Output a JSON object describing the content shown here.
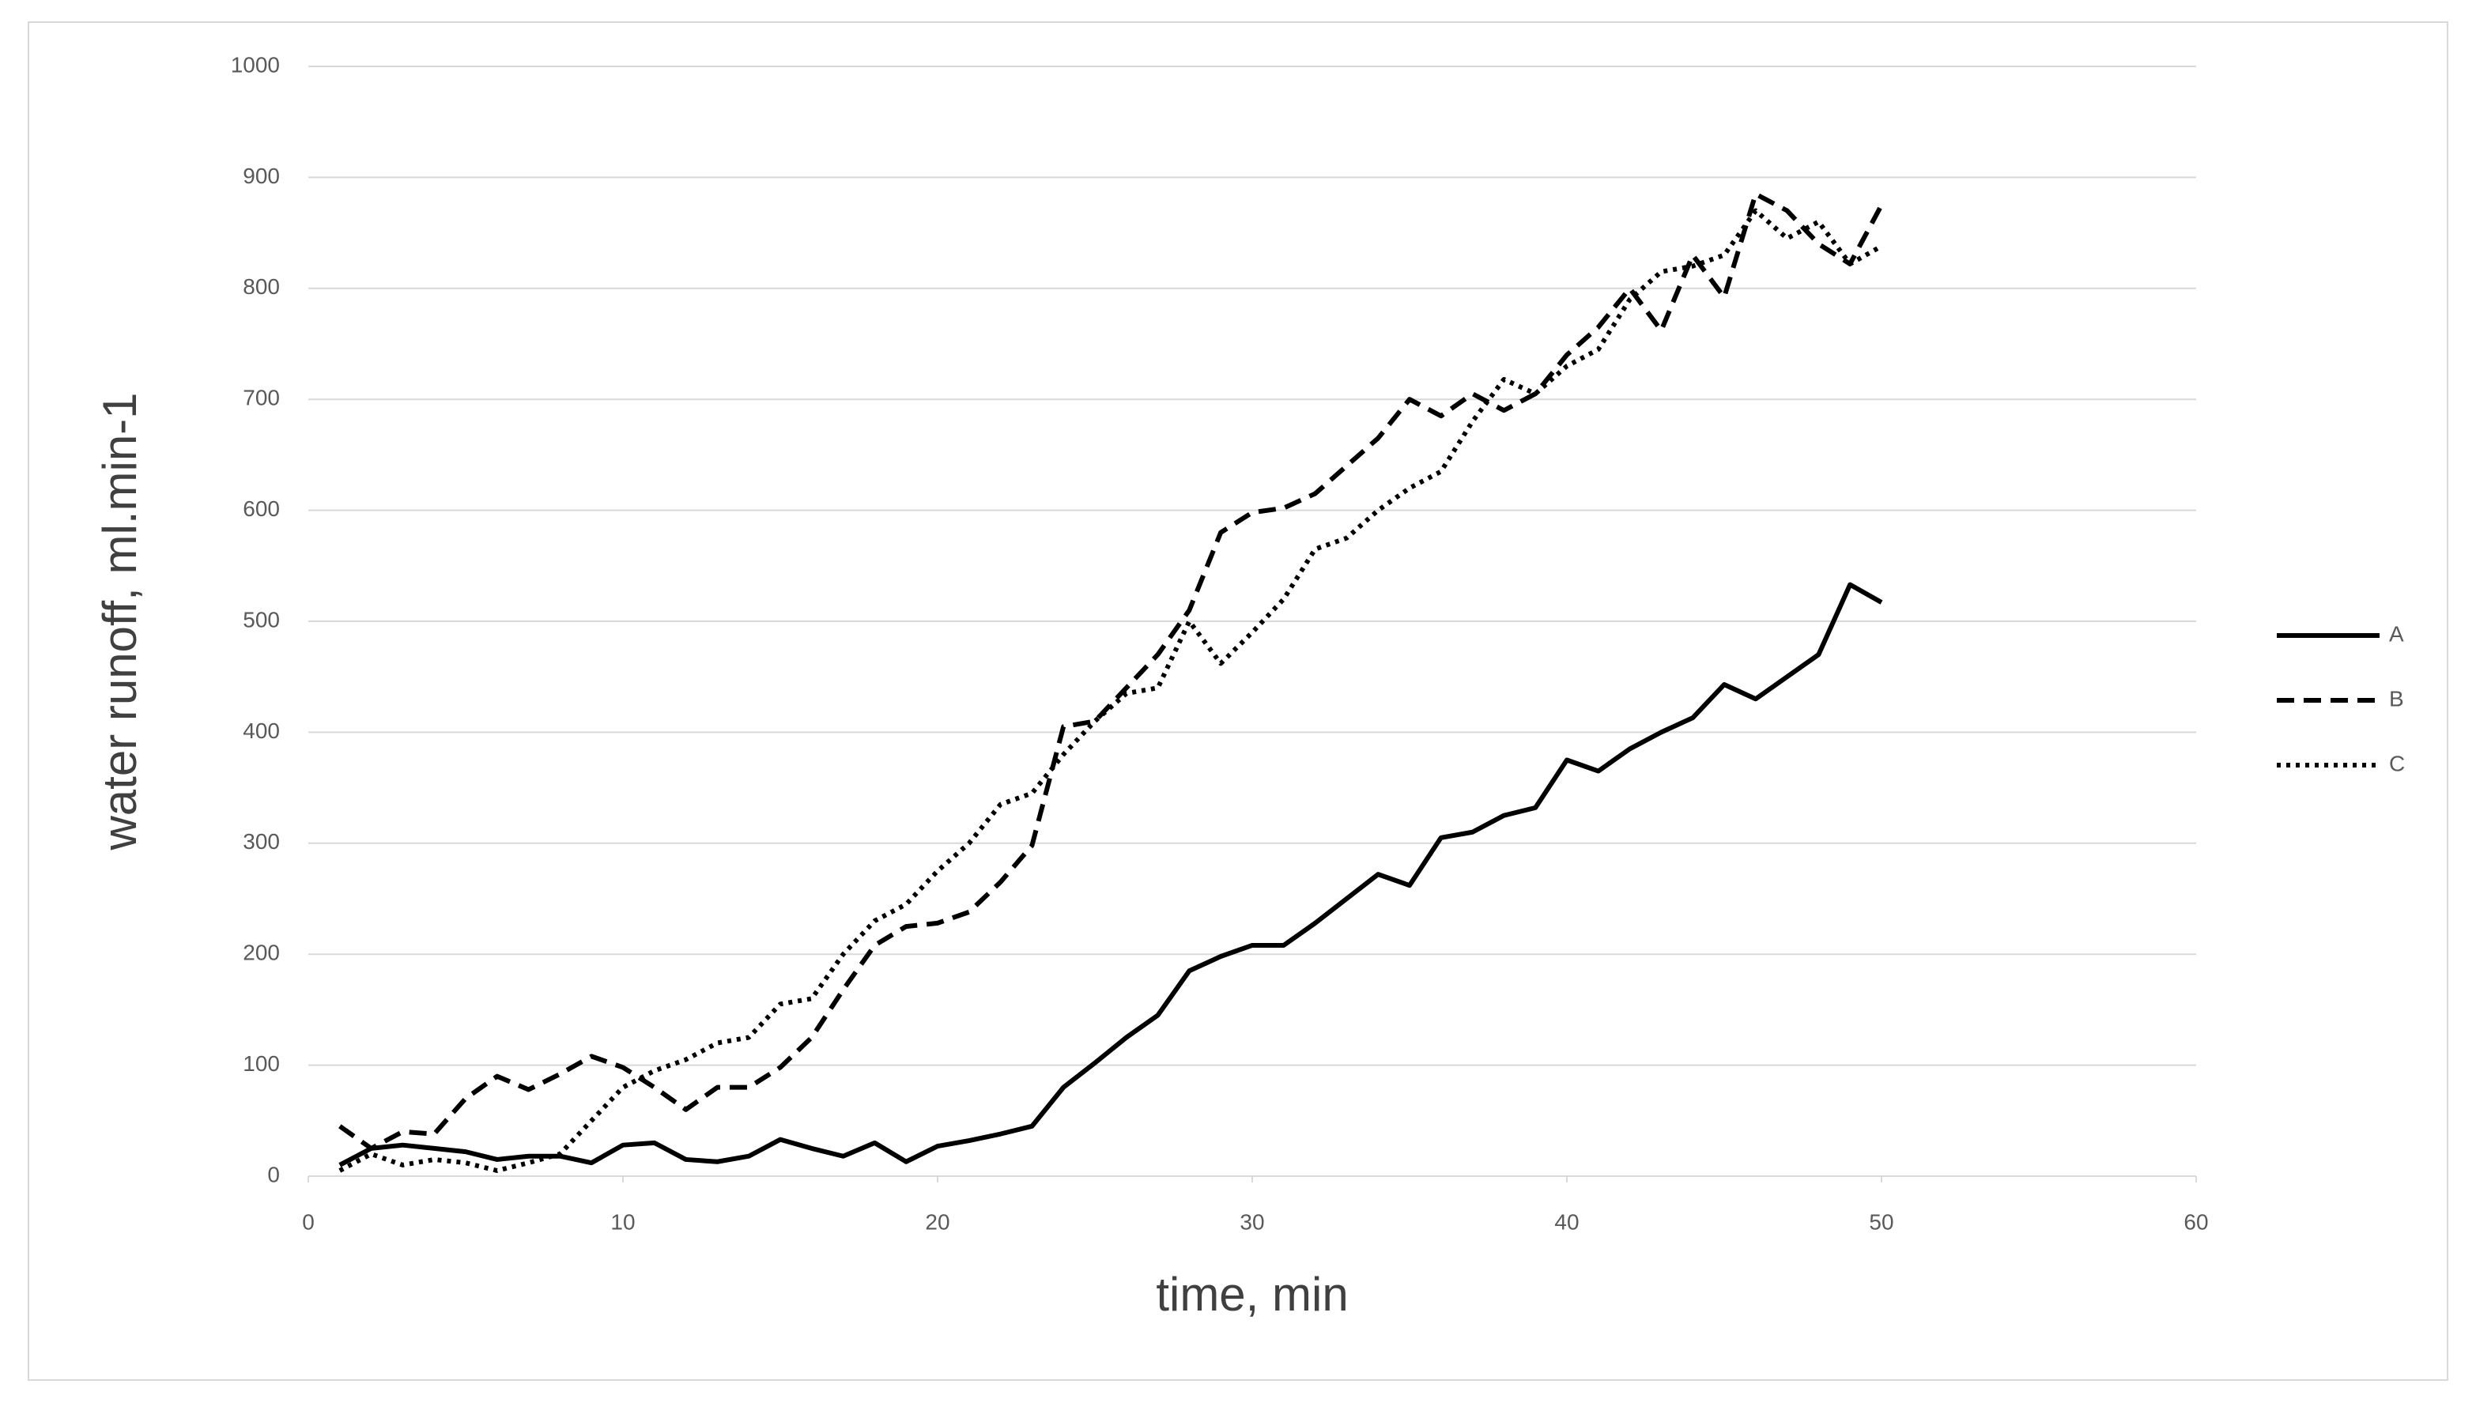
{
  "chart_data": {
    "type": "line",
    "x_label": "time, min",
    "y_label": "water runoff, ml.min-1",
    "x": [
      1,
      2,
      3,
      4,
      5,
      6,
      7,
      8,
      9,
      10,
      11,
      12,
      13,
      14,
      15,
      16,
      17,
      18,
      19,
      20,
      21,
      22,
      23,
      24,
      25,
      26,
      27,
      28,
      29,
      30,
      31,
      32,
      33,
      34,
      35,
      36,
      37,
      38,
      39,
      40,
      41,
      42,
      43,
      44,
      45,
      46,
      47,
      48,
      49,
      50
    ],
    "series": [
      {
        "name": "A",
        "color": "#000000",
        "dash": "solid",
        "values": [
          10,
          25,
          28,
          25,
          22,
          15,
          18,
          18,
          12,
          28,
          30,
          15,
          13,
          18,
          33,
          25,
          18,
          30,
          13,
          27,
          32,
          38,
          45,
          80,
          102,
          125,
          145,
          185,
          198,
          208,
          208,
          228,
          250,
          272,
          262,
          305,
          310,
          325,
          332,
          375,
          365,
          385,
          400,
          413,
          443,
          430,
          450,
          470,
          533,
          517
        ]
      },
      {
        "name": "B",
        "color": "#000000",
        "dash": "dashed",
        "values": [
          45,
          25,
          40,
          38,
          70,
          90,
          78,
          92,
          108,
          98,
          80,
          60,
          80,
          80,
          98,
          125,
          168,
          208,
          225,
          228,
          238,
          265,
          298,
          405,
          410,
          440,
          470,
          510,
          580,
          598,
          602,
          615,
          640,
          665,
          700,
          685,
          705,
          690,
          705,
          740,
          765,
          800,
          762,
          830,
          792,
          885,
          870,
          840,
          822,
          875
        ]
      },
      {
        "name": "C",
        "color": "#000000",
        "dash": "dotted",
        "values": [
          5,
          20,
          10,
          15,
          12,
          5,
          12,
          20,
          50,
          80,
          95,
          105,
          120,
          125,
          155,
          160,
          200,
          230,
          245,
          275,
          300,
          335,
          345,
          380,
          410,
          435,
          440,
          500,
          462,
          490,
          520,
          565,
          575,
          600,
          620,
          635,
          680,
          718,
          705,
          730,
          745,
          790,
          815,
          820,
          830,
          870,
          845,
          860,
          822,
          838
        ]
      }
    ],
    "xlim": [
      0,
      60
    ],
    "xticks": [
      0,
      10,
      20,
      30,
      40,
      50,
      60
    ],
    "ylim": [
      0,
      1000
    ],
    "yticks": [
      0,
      100,
      200,
      300,
      400,
      500,
      600,
      700,
      800,
      900,
      1000
    ],
    "grid": true,
    "legend": "right"
  }
}
